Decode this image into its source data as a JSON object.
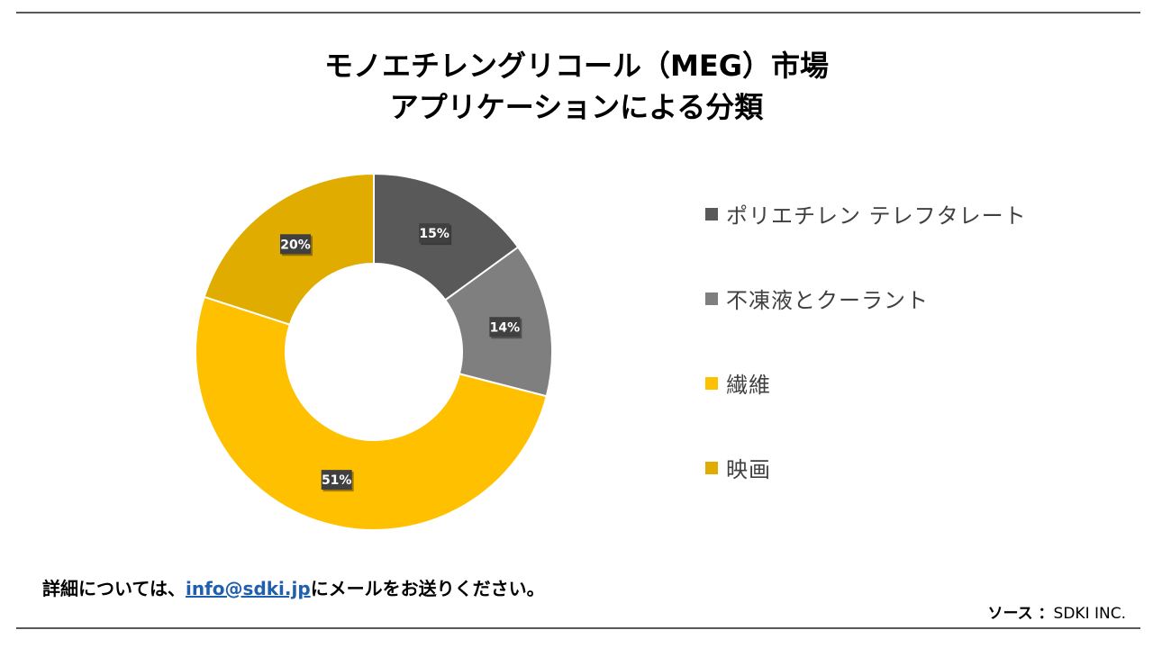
{
  "title": {
    "line1": "モノエチレングリコール（MEG）市場",
    "line2": "アプリケーションによる分類"
  },
  "chart_data": {
    "type": "pie",
    "donut": true,
    "start_angle_deg": 0,
    "direction": "clockwise",
    "series": [
      {
        "name": "ポリエチレン テレフタレート",
        "value": 15,
        "label": "15%",
        "color": "#595959"
      },
      {
        "name": "不凍液とクーラント",
        "value": 14,
        "label": "14%",
        "color": "#7f7f7f"
      },
      {
        "name": "繊維",
        "value": 51,
        "label": "51%",
        "color": "#ffc000"
      },
      {
        "name": "映画",
        "value": 20,
        "label": "20%",
        "color": "#e0ac00"
      }
    ],
    "legend_position": "right"
  },
  "footer": {
    "prefix": "詳細については、",
    "email": "info@sdki.jp",
    "suffix": "にメールをお送りください。"
  },
  "source": {
    "label": "ソース ：",
    "value": "SDKI INC."
  }
}
